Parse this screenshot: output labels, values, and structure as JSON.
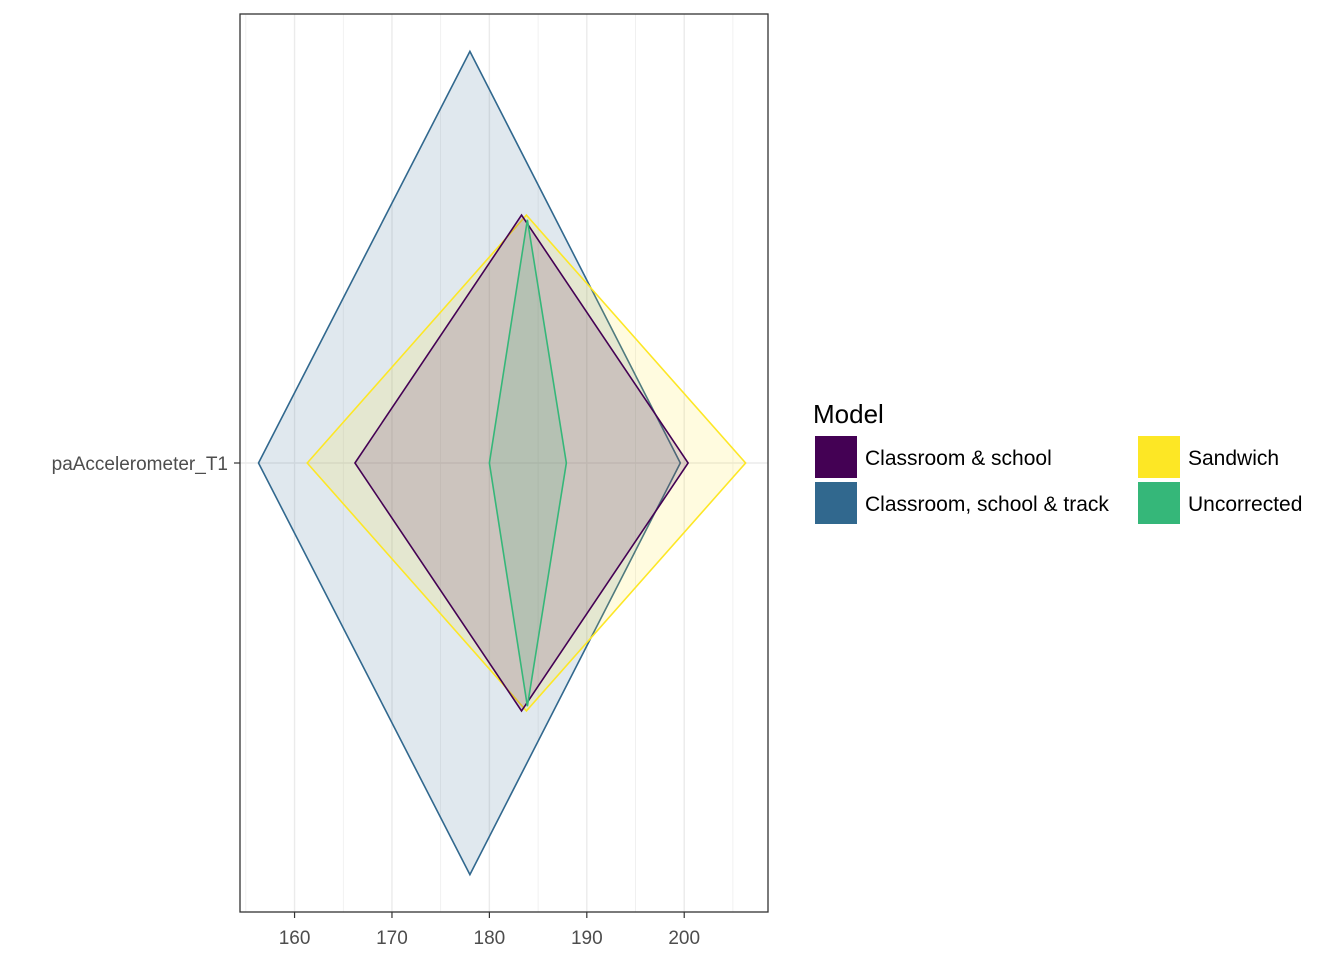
{
  "chart_data": {
    "type": "diamond",
    "categories": [
      "paAccelerometer_T1"
    ],
    "x_ticks": [
      160,
      170,
      180,
      190,
      200
    ],
    "xlim": [
      154.4,
      208.6
    ],
    "grid": true,
    "legend": {
      "title": "Model",
      "placement": "right",
      "entries": [
        "Classroom & school",
        "Classroom, school & track",
        "Sandwich",
        "Uncorrected"
      ]
    },
    "series": [
      {
        "name": "Classroom, school & track",
        "color": "#31688E",
        "estimate": 178.0,
        "ci_low": 156.3,
        "ci_high": 199.6,
        "half_height": 0.88
      },
      {
        "name": "Sandwich",
        "color": "#FDE725",
        "estimate": 183.8,
        "ci_low": 161.3,
        "ci_high": 206.3,
        "half_height": 0.53
      },
      {
        "name": "Classroom & school",
        "color": "#440154",
        "estimate": 183.3,
        "ci_low": 166.2,
        "ci_high": 200.4,
        "half_height": 0.53
      },
      {
        "name": "Uncorrected",
        "color": "#35B779",
        "estimate": 183.9,
        "ci_low": 180.0,
        "ci_high": 187.9,
        "half_height": 0.52
      }
    ]
  }
}
